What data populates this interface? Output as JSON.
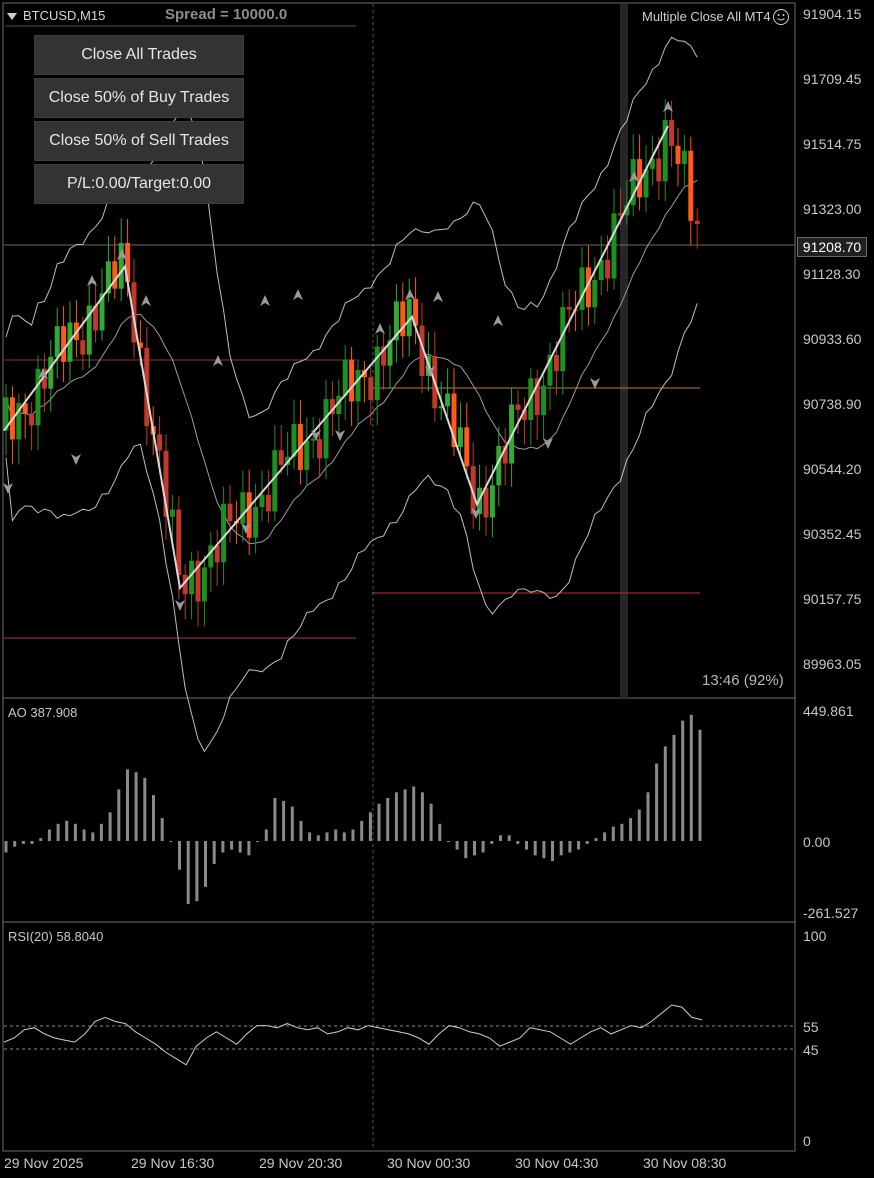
{
  "header": {
    "symbol": "BTCUSD,M15",
    "spread": "Spread = 10000.0",
    "ea_name": "Multiple Close All MT4"
  },
  "buttons": {
    "close_all": "Close All Trades",
    "close_buy": "Close 50% of Buy Trades",
    "close_sell": "Close 50% of Sell Trades",
    "pl_target": "P/L:0.00/Target:0.00"
  },
  "price_axis": [
    "91904.15",
    "91709.45",
    "91514.75",
    "91323.00",
    "91128.30",
    "90933.60",
    "90738.90",
    "90544.20",
    "90352.45",
    "90157.75",
    "89963.05"
  ],
  "current_price": "91208.70",
  "candle_timer": "13:46 (92%)",
  "ao": {
    "label": "AO 387.908",
    "axis": [
      "449.861",
      "0.00",
      "-261.527"
    ]
  },
  "rsi": {
    "label": "RSI(20) 58.8040",
    "axis": [
      "100",
      "55",
      "45",
      "0"
    ]
  },
  "time_axis": [
    "29 Nov 2025",
    "29 Nov 16:30",
    "29 Nov 20:30",
    "30 Nov 00:30",
    "30 Nov 04:30",
    "30 Nov 08:30"
  ],
  "colors": {
    "bull": "#1f8f1f",
    "bear": "#c0392b",
    "bear_alt": "#ff5a1a",
    "bull_alt": "#33a833",
    "zigzag": "#d8d8d8"
  },
  "chart_data": {
    "type": "line",
    "zigzag_points": [
      90660,
      91150,
      90190,
      91000,
      90440,
      91570
    ],
    "ao_values": [
      -40,
      -20,
      -10,
      -10,
      10,
      40,
      60,
      70,
      60,
      40,
      30,
      60,
      100,
      180,
      250,
      240,
      220,
      160,
      80,
      0,
      -100,
      -220,
      -210,
      -160,
      -80,
      -40,
      -30,
      -40,
      -50,
      0,
      40,
      150,
      140,
      120,
      70,
      30,
      20,
      30,
      40,
      30,
      40,
      70,
      100,
      130,
      150,
      170,
      180,
      190,
      170,
      130,
      60,
      0,
      -30,
      -60,
      -50,
      -40,
      -10,
      20,
      20,
      -10,
      -30,
      -50,
      -60,
      -70,
      -50,
      -40,
      -30,
      -10,
      10,
      30,
      50,
      60,
      80,
      110,
      170,
      270,
      330,
      370,
      420,
      440,
      387.908
    ],
    "rsi_values": [
      48,
      50,
      54,
      55,
      52,
      50,
      49,
      48,
      52,
      58,
      60,
      58,
      57,
      53,
      50,
      47,
      43,
      40,
      37,
      46,
      50,
      53,
      50,
      47,
      52,
      56,
      56,
      55,
      57,
      55,
      54,
      55,
      52,
      53,
      55,
      54,
      56,
      55,
      54,
      53,
      52,
      50,
      47,
      52,
      56,
      55,
      53,
      52,
      50,
      46,
      48,
      50,
      55,
      54,
      53,
      50,
      47,
      50,
      53,
      55,
      52,
      54,
      56,
      55,
      58,
      62,
      66,
      65,
      60,
      58.8
    ]
  }
}
